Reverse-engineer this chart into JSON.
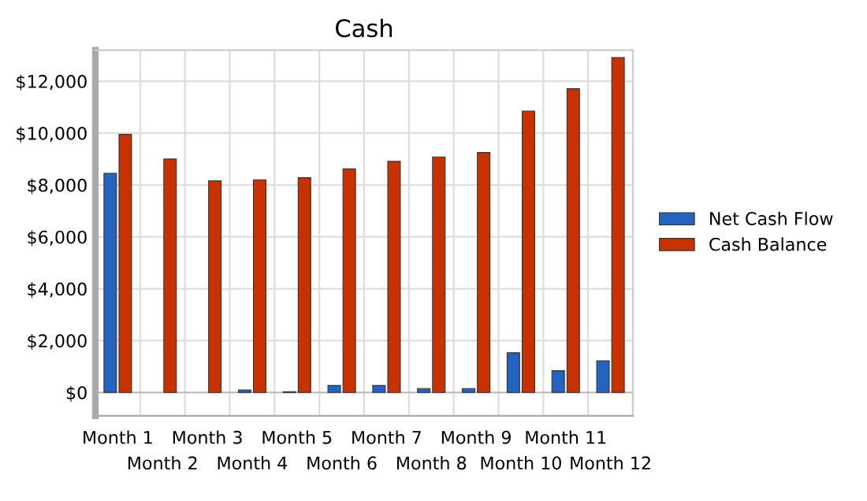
{
  "chart_data": {
    "type": "bar",
    "title": "Cash",
    "categories": [
      "Month 1",
      "Month 2",
      "Month 3",
      "Month 4",
      "Month 5",
      "Month 6",
      "Month 7",
      "Month 8",
      "Month 9",
      "Month 10",
      "Month 11",
      "Month 12"
    ],
    "series": [
      {
        "name": "Net Cash Flow",
        "color": "#2563c0",
        "values": [
          8450,
          null,
          null,
          100,
          30,
          270,
          270,
          150,
          150,
          1530,
          840,
          1220
        ]
      },
      {
        "name": "Cash Balance",
        "color": "#c83200",
        "values": [
          9950,
          9000,
          8160,
          8200,
          8280,
          8620,
          8910,
          9080,
          9250,
          10850,
          11710,
          12910
        ]
      }
    ],
    "ylim": [
      -900,
      13200
    ],
    "yticks": [
      {
        "value": 0,
        "label": "$0"
      },
      {
        "value": 2000,
        "label": "$2,000"
      },
      {
        "value": 4000,
        "label": "$4,000"
      },
      {
        "value": 6000,
        "label": "$6,000"
      },
      {
        "value": 8000,
        "label": "$8,000"
      },
      {
        "value": 10000,
        "label": "$10,000"
      },
      {
        "value": 12000,
        "label": "$12,000"
      }
    ],
    "grid": true,
    "legend": "right"
  }
}
